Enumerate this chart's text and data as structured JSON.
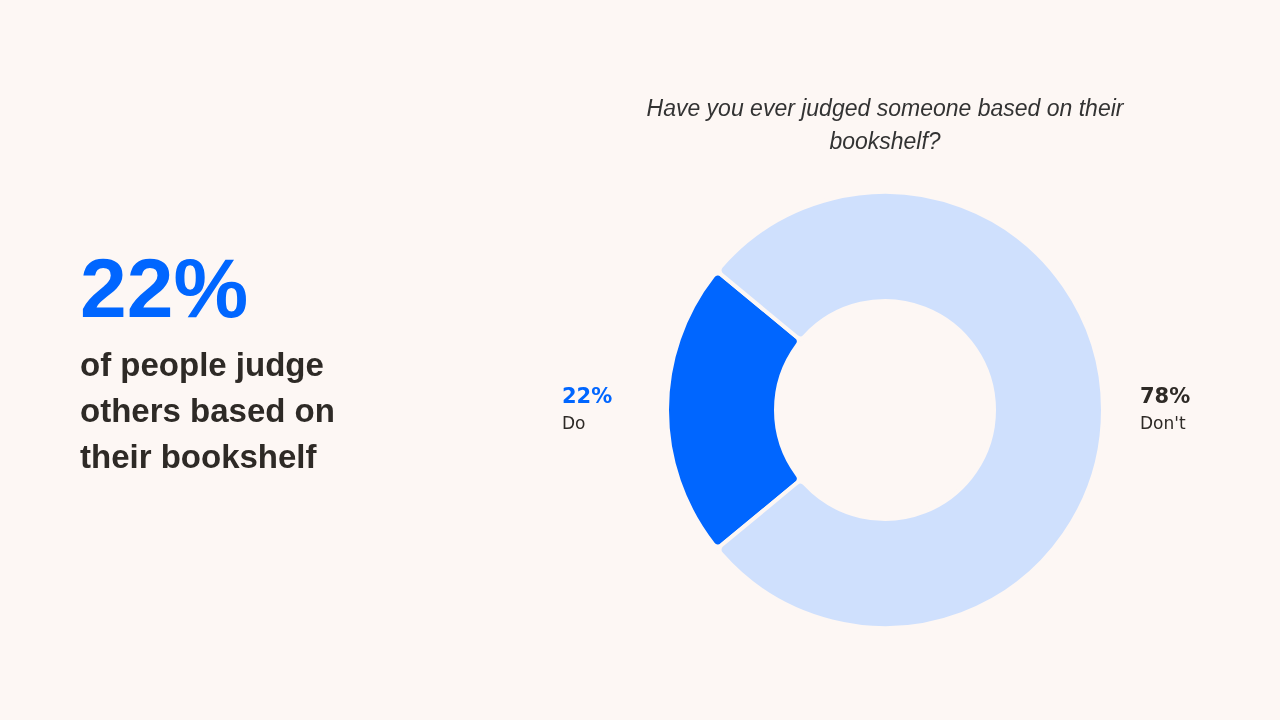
{
  "chart_data": {
    "type": "donut",
    "title": "Have you ever judged someone based on their bookshelf?",
    "categories": [
      "Do",
      "Don't"
    ],
    "values": [
      22,
      78
    ],
    "colors": [
      "#0066ff",
      "#cfe0fd"
    ],
    "value_labels": [
      "22%",
      "78%"
    ],
    "legend": false,
    "annotations": [
      "22%",
      "of people judge others based on their bookshelf"
    ]
  }
}
